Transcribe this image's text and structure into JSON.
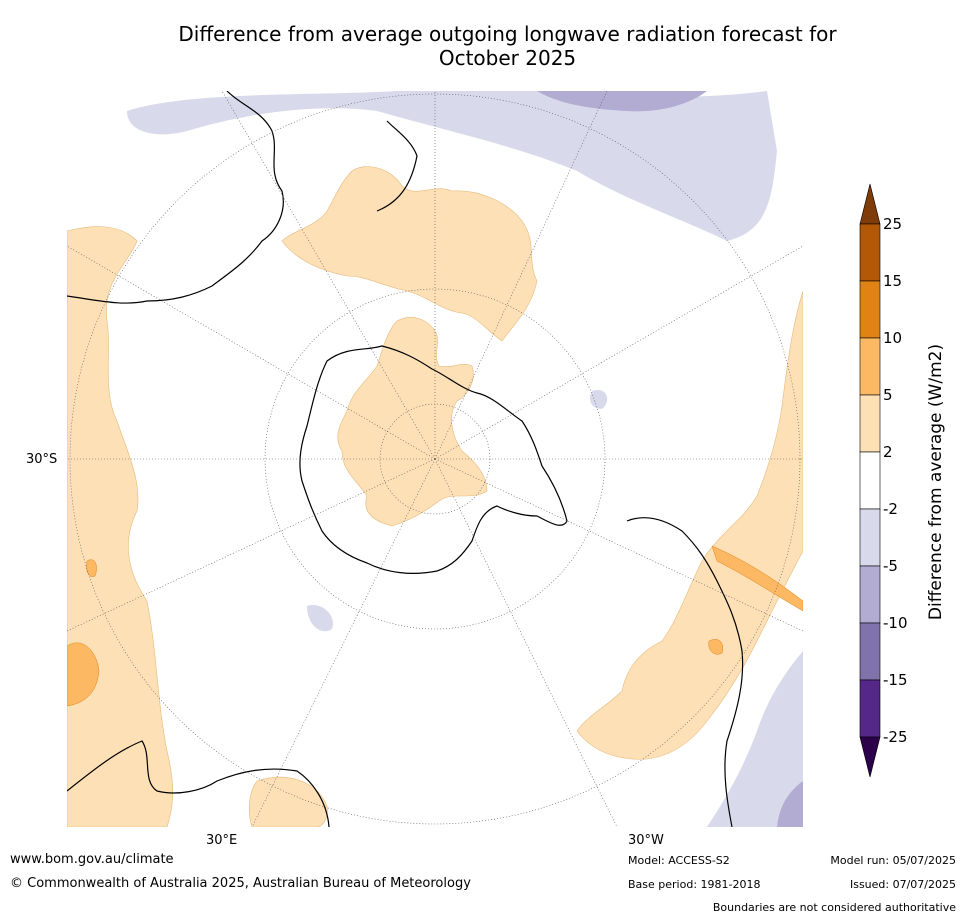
{
  "title_line1": "Difference from average outgoing longwave radiation forecast for",
  "title_line2": "October 2025",
  "axis_labels": {
    "lat_30s": "30°S",
    "lon_30e": "30°E",
    "lon_30w": "30°W"
  },
  "colorbar": {
    "label": "Difference from average (W/m2)",
    "ticks": [
      "25",
      "15",
      "10",
      "5",
      "2",
      "-2",
      "-5",
      "-10",
      "-15",
      "-25"
    ],
    "bins": [
      {
        "range": "> 25",
        "color": "#7f3b08"
      },
      {
        "range": "15 to 25",
        "color": "#b35806"
      },
      {
        "range": "10 to 15",
        "color": "#e08214"
      },
      {
        "range": "5 to 10",
        "color": "#fdb863"
      },
      {
        "range": "2 to 5",
        "color": "#fee0b6"
      },
      {
        "range": "-2 to 2",
        "color": "#ffffff"
      },
      {
        "range": "-5 to -2",
        "color": "#d8daeb"
      },
      {
        "range": "-10 to -5",
        "color": "#b2abd2"
      },
      {
        "range": "-15 to -10",
        "color": "#8073ac"
      },
      {
        "range": "-25 to -15",
        "color": "#542788"
      },
      {
        "range": "< -25",
        "color": "#2d004b"
      }
    ]
  },
  "footer": {
    "website": "www.bom.gov.au/climate",
    "copyright": "© Commonwealth of Australia 2025, Australian Bureau of Meteorology",
    "model": "Model: ACCESS-S2",
    "base_period": "Base period: 1981-2018",
    "model_run": "Model run: 05/07/2025",
    "issued": "Issued: 07/07/2025",
    "disclaimer": "Boundaries are not considered authoritative"
  }
}
